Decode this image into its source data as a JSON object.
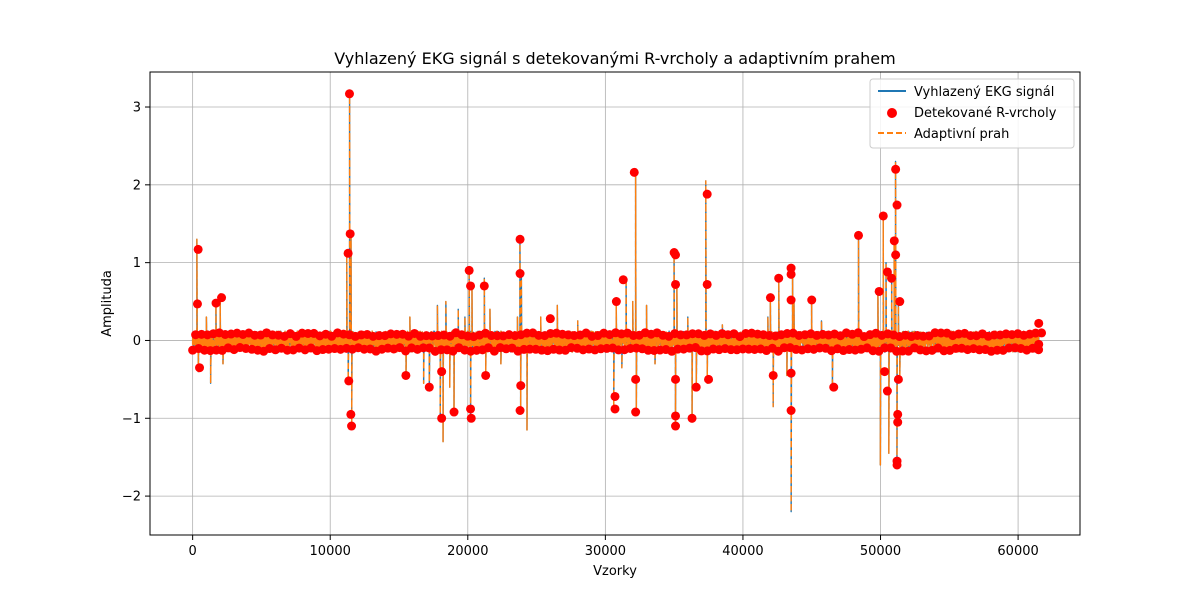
{
  "chart_data": {
    "type": "line",
    "title": "Vyhlazený EKG signál s detekovanými R-vrcholy a adaptivním prahem",
    "xlabel": "Vzorky",
    "ylabel": "Amplituda",
    "xlim": [
      -3100,
      64500
    ],
    "ylim": [
      -2.5,
      3.45
    ],
    "xticks": [
      0,
      10000,
      20000,
      30000,
      40000,
      50000,
      60000
    ],
    "yticks": [
      -2,
      -1,
      0,
      1,
      2,
      3
    ],
    "ytick_labels": [
      "−2",
      "−1",
      "0",
      "1",
      "2",
      "3"
    ],
    "grid": true,
    "legend_position": "top-right",
    "colors": {
      "signal": "#1f77b4",
      "peaks": "#ff0000",
      "threshold": "#ff7f0e"
    },
    "legend": [
      {
        "label": "Vyhlazený EKG signál",
        "kind": "line",
        "color": "#1f77b4"
      },
      {
        "label": "Detekované R-vrcholy",
        "kind": "marker",
        "color": "#ff0000"
      },
      {
        "label": "Adaptivní prah",
        "kind": "dashed",
        "color": "#ff7f0e"
      }
    ],
    "x_range": [
      0,
      61500
    ],
    "baseline_band": [
      -0.15,
      0.12
    ],
    "spikes": [
      {
        "x": 300,
        "y": 1.3
      },
      {
        "x": 400,
        "y": -0.4
      },
      {
        "x": 1000,
        "y": 0.3
      },
      {
        "x": 1300,
        "y": -0.55
      },
      {
        "x": 1700,
        "y": 0.5
      },
      {
        "x": 2000,
        "y": 0.6
      },
      {
        "x": 2200,
        "y": -0.3
      },
      {
        "x": 11200,
        "y": 1.1
      },
      {
        "x": 11400,
        "y": 3.2
      },
      {
        "x": 11500,
        "y": 1.4
      },
      {
        "x": 11550,
        "y": -1.1
      },
      {
        "x": 11300,
        "y": -0.5
      },
      {
        "x": 15500,
        "y": -0.45
      },
      {
        "x": 15800,
        "y": 0.3
      },
      {
        "x": 16800,
        "y": -0.55
      },
      {
        "x": 17200,
        "y": -0.65
      },
      {
        "x": 17800,
        "y": 0.45
      },
      {
        "x": 18000,
        "y": -1.0
      },
      {
        "x": 18200,
        "y": -1.3
      },
      {
        "x": 18400,
        "y": 0.5
      },
      {
        "x": 18700,
        "y": -0.6
      },
      {
        "x": 19000,
        "y": -0.95
      },
      {
        "x": 19300,
        "y": 0.4
      },
      {
        "x": 19800,
        "y": 0.3
      },
      {
        "x": 20100,
        "y": 0.9
      },
      {
        "x": 20200,
        "y": -1.0
      },
      {
        "x": 20300,
        "y": 0.7
      },
      {
        "x": 21200,
        "y": 0.8
      },
      {
        "x": 21300,
        "y": -0.45
      },
      {
        "x": 21600,
        "y": 0.4
      },
      {
        "x": 22400,
        "y": -0.3
      },
      {
        "x": 23600,
        "y": 0.3
      },
      {
        "x": 23800,
        "y": 1.3
      },
      {
        "x": 23900,
        "y": 0.85
      },
      {
        "x": 23850,
        "y": -0.9
      },
      {
        "x": 24300,
        "y": -1.15
      },
      {
        "x": 25300,
        "y": 0.3
      },
      {
        "x": 26500,
        "y": 0.45
      },
      {
        "x": 28000,
        "y": 0.25
      },
      {
        "x": 30600,
        "y": -0.85
      },
      {
        "x": 30800,
        "y": 0.55
      },
      {
        "x": 31200,
        "y": -0.35
      },
      {
        "x": 31500,
        "y": 0.8
      },
      {
        "x": 32000,
        "y": 0.5
      },
      {
        "x": 32200,
        "y": 2.2
      },
      {
        "x": 32250,
        "y": -0.9
      },
      {
        "x": 33000,
        "y": 0.45
      },
      {
        "x": 33600,
        "y": -0.3
      },
      {
        "x": 35000,
        "y": 1.15
      },
      {
        "x": 35100,
        "y": -1.1
      },
      {
        "x": 35200,
        "y": 0.7
      },
      {
        "x": 36000,
        "y": 0.3
      },
      {
        "x": 36300,
        "y": -1.05
      },
      {
        "x": 36600,
        "y": -0.6
      },
      {
        "x": 37300,
        "y": 2.05
      },
      {
        "x": 37400,
        "y": -0.55
      },
      {
        "x": 38500,
        "y": 0.2
      },
      {
        "x": 41800,
        "y": 0.3
      },
      {
        "x": 42000,
        "y": 0.55
      },
      {
        "x": 42200,
        "y": -0.85
      },
      {
        "x": 42600,
        "y": 0.8
      },
      {
        "x": 43200,
        "y": -0.45
      },
      {
        "x": 43500,
        "y": -2.2
      },
      {
        "x": 43600,
        "y": 0.95
      },
      {
        "x": 43700,
        "y": 0.5
      },
      {
        "x": 45000,
        "y": 0.5
      },
      {
        "x": 45700,
        "y": 0.25
      },
      {
        "x": 46500,
        "y": -0.6
      },
      {
        "x": 48400,
        "y": 1.35
      },
      {
        "x": 49800,
        "y": 0.65
      },
      {
        "x": 50000,
        "y": -1.6
      },
      {
        "x": 50200,
        "y": 1.6
      },
      {
        "x": 50400,
        "y": 1.0
      },
      {
        "x": 50600,
        "y": -1.45
      },
      {
        "x": 50800,
        "y": 0.85
      },
      {
        "x": 51000,
        "y": 1.3
      },
      {
        "x": 51100,
        "y": 2.3
      },
      {
        "x": 51200,
        "y": -1.6
      },
      {
        "x": 51300,
        "y": 0.5
      },
      {
        "x": 51400,
        "y": -0.5
      }
    ],
    "peaks": [
      {
        "x": 400,
        "y": 1.17
      },
      {
        "x": 500,
        "y": -0.35
      },
      {
        "x": 350,
        "y": 0.47
      },
      {
        "x": 1700,
        "y": 0.48
      },
      {
        "x": 2100,
        "y": 0.55
      },
      {
        "x": 11300,
        "y": 1.12
      },
      {
        "x": 11400,
        "y": 3.17
      },
      {
        "x": 11450,
        "y": 1.37
      },
      {
        "x": 11500,
        "y": -0.95
      },
      {
        "x": 11550,
        "y": -1.1
      },
      {
        "x": 11350,
        "y": -0.52
      },
      {
        "x": 15500,
        "y": -0.45
      },
      {
        "x": 17200,
        "y": -0.6
      },
      {
        "x": 18100,
        "y": -1.0
      },
      {
        "x": 18100,
        "y": -0.4
      },
      {
        "x": 19000,
        "y": -0.92
      },
      {
        "x": 20100,
        "y": 0.9
      },
      {
        "x": 20200,
        "y": 0.7
      },
      {
        "x": 20200,
        "y": -0.88
      },
      {
        "x": 20250,
        "y": -1.0
      },
      {
        "x": 21200,
        "y": 0.7
      },
      {
        "x": 21300,
        "y": -0.45
      },
      {
        "x": 23800,
        "y": 1.3
      },
      {
        "x": 23800,
        "y": 0.86
      },
      {
        "x": 23800,
        "y": -0.9
      },
      {
        "x": 23850,
        "y": -0.58
      },
      {
        "x": 26000,
        "y": 0.28
      },
      {
        "x": 30700,
        "y": -0.88
      },
      {
        "x": 30700,
        "y": -0.72
      },
      {
        "x": 30800,
        "y": 0.5
      },
      {
        "x": 31300,
        "y": 0.78
      },
      {
        "x": 32100,
        "y": 2.16
      },
      {
        "x": 32200,
        "y": -0.92
      },
      {
        "x": 32200,
        "y": -0.5
      },
      {
        "x": 35000,
        "y": 1.13
      },
      {
        "x": 35100,
        "y": 1.1
      },
      {
        "x": 35100,
        "y": 0.72
      },
      {
        "x": 35100,
        "y": -0.97
      },
      {
        "x": 35100,
        "y": -1.1
      },
      {
        "x": 35100,
        "y": -0.5
      },
      {
        "x": 36300,
        "y": -1.0
      },
      {
        "x": 36600,
        "y": -0.6
      },
      {
        "x": 37400,
        "y": 1.88
      },
      {
        "x": 37400,
        "y": 0.72
      },
      {
        "x": 37500,
        "y": -0.5
      },
      {
        "x": 42000,
        "y": 0.55
      },
      {
        "x": 42200,
        "y": -0.45
      },
      {
        "x": 42600,
        "y": 0.8
      },
      {
        "x": 43500,
        "y": 0.93
      },
      {
        "x": 43500,
        "y": 0.85
      },
      {
        "x": 43500,
        "y": 0.52
      },
      {
        "x": 43500,
        "y": -0.42
      },
      {
        "x": 43500,
        "y": -0.9
      },
      {
        "x": 45000,
        "y": 0.52
      },
      {
        "x": 46600,
        "y": -0.6
      },
      {
        "x": 48400,
        "y": 1.35
      },
      {
        "x": 49900,
        "y": 0.63
      },
      {
        "x": 50200,
        "y": 1.6
      },
      {
        "x": 50500,
        "y": 0.88
      },
      {
        "x": 50800,
        "y": 0.8
      },
      {
        "x": 51000,
        "y": 1.28
      },
      {
        "x": 51100,
        "y": 1.1
      },
      {
        "x": 51100,
        "y": 2.2
      },
      {
        "x": 51200,
        "y": 1.74
      },
      {
        "x": 51200,
        "y": -1.55
      },
      {
        "x": 51200,
        "y": -1.6
      },
      {
        "x": 51250,
        "y": -0.95
      },
      {
        "x": 51250,
        "y": -1.05
      },
      {
        "x": 51300,
        "y": -0.5
      },
      {
        "x": 51400,
        "y": 0.5
      },
      {
        "x": 50300,
        "y": -0.4
      },
      {
        "x": 50500,
        "y": -0.65
      },
      {
        "x": 61500,
        "y": 0.22
      },
      {
        "x": 61500,
        "y": -0.05
      }
    ]
  }
}
